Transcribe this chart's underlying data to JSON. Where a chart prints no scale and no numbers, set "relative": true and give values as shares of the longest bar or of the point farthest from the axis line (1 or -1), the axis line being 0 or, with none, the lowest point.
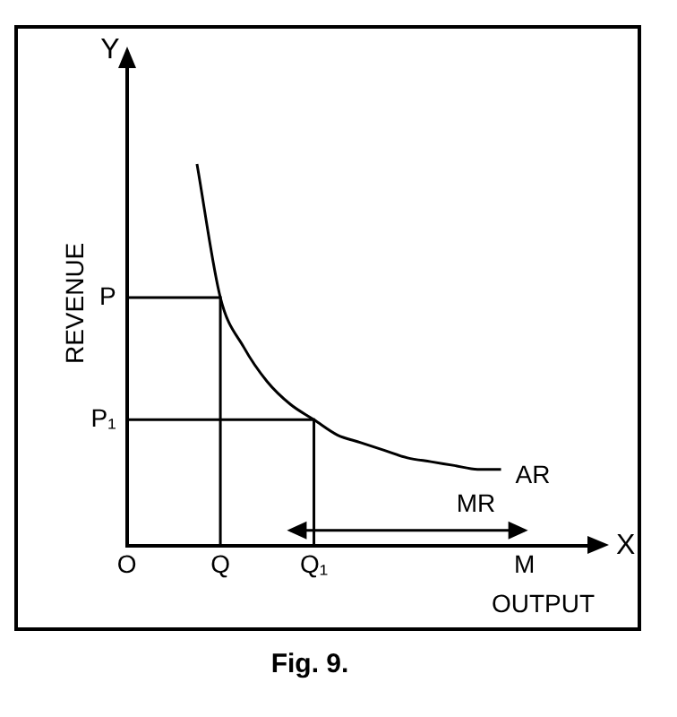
{
  "chart_data": {
    "type": "line",
    "title": "Fig. 9.",
    "xlabel": "OUTPUT",
    "ylabel": "REVENUE",
    "relative": true,
    "tick_labels": "x",
    "annotations": [
      "Y",
      "X"
    ],
    "ref_lines": [
      {
        "axis": "y",
        "value": 0.65,
        "label": "P"
      },
      {
        "axis": "y",
        "value": 0.33,
        "label": "P₁"
      }
    ],
    "categories": [
      "O",
      null,
      null,
      null,
      "Q",
      null,
      null,
      null,
      "Q₁",
      null,
      null,
      null,
      null,
      null,
      null,
      null,
      null,
      "M",
      null,
      null,
      null
    ],
    "grid": false,
    "legend": false,
    "marker": "none",
    "line_style": "solid",
    "series": [
      {
        "name": "AR",
        "color": "#000000",
        "values": [
          null,
          null,
          null,
          1,
          0.65,
          0.52,
          0.43,
          0.37,
          0.33,
          0.29,
          0.27,
          0.25,
          0.23,
          0.22,
          0.21,
          0.2,
          0.2,
          null,
          null,
          null,
          null
        ]
      },
      {
        "name": "MR",
        "color": "#000000",
        "values": [
          null,
          null,
          null,
          null,
          null,
          null,
          null,
          0.04,
          0.04,
          0.04,
          0.04,
          0.04,
          0.04,
          0.04,
          0.04,
          0.04,
          0.04,
          0.04,
          null,
          null,
          null
        ]
      }
    ]
  }
}
